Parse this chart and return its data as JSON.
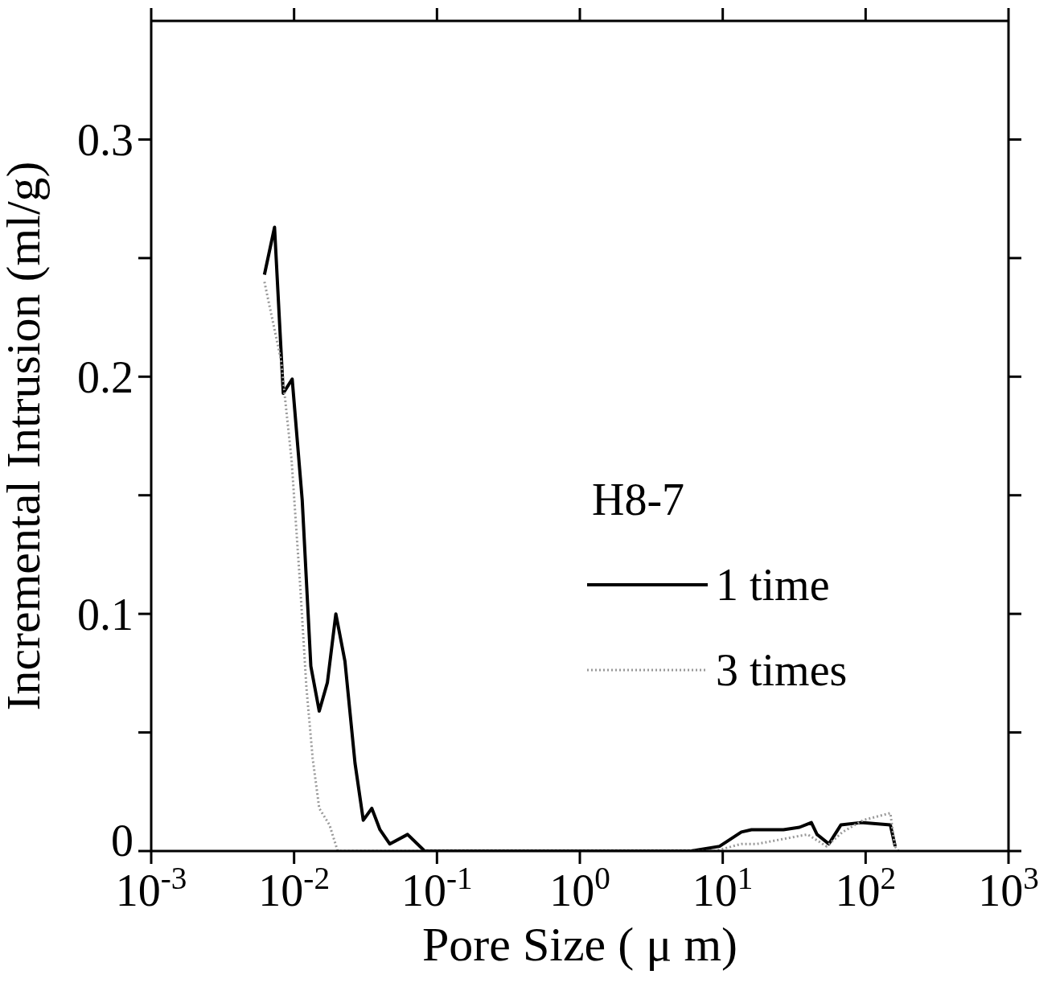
{
  "chart_data": {
    "type": "line",
    "xlabel": "Pore Size ( μ m)",
    "ylabel": "Incremental Intrusion (ml/g)",
    "legend_title": "H8-7",
    "legend": "right",
    "log": "x",
    "xlim": [
      0.001,
      1000
    ],
    "xticks": [
      {
        "value": 0.001,
        "label": "10$^{-3}$"
      },
      {
        "value": 0.01,
        "label": "10$^{-2}$"
      },
      {
        "value": 0.1,
        "label": "10$^{-1}$"
      },
      {
        "value": 1,
        "label": "10$^{0}$"
      },
      {
        "value": 10,
        "label": "10$^{1}$"
      },
      {
        "value": 100,
        "label": "10$^{2}$"
      },
      {
        "value": 1000,
        "label": "10$^{3}$"
      }
    ],
    "ylim": [
      0,
      0.35
    ],
    "yticks": [
      0,
      {
        "value": 0.05,
        "label": null
      },
      0.1,
      {
        "value": 0.15,
        "label": null
      },
      0.2,
      {
        "value": 0.25,
        "label": null
      },
      0.3
    ],
    "marker": "none",
    "series": [
      {
        "name": "1 time",
        "color": "#000000",
        "line_style": "solid",
        "x": [
          0.0062,
          0.0073,
          0.0084,
          0.0097,
          0.0114,
          0.0131,
          0.015,
          0.0171,
          0.0196,
          0.0227,
          0.0267,
          0.0305,
          0.035,
          0.0399,
          0.0467,
          0.0623,
          0.082,
          0.1,
          1,
          6,
          9.5,
          13.5,
          15.9,
          26.6,
          34.4,
          41.7,
          45.7,
          55.3,
          67.1,
          92.7,
          149,
          161
        ],
        "values": [
          0.243,
          0.263,
          0.193,
          0.199,
          0.148,
          0.078,
          0.059,
          0.071,
          0.1,
          0.08,
          0.037,
          0.013,
          0.018,
          0.009,
          0.003,
          0.007,
          0,
          0,
          0,
          0,
          0.002,
          0.008,
          0.009,
          0.009,
          0.01,
          0.012,
          0.007,
          0.003,
          0.011,
          0.012,
          0.011,
          0.002
        ]
      },
      {
        "name": "3 times",
        "color": "#999999",
        "line_style": "dotted",
        "x": [
          0.0062,
          0.0081,
          0.0096,
          0.011,
          0.0122,
          0.0135,
          0.015,
          0.0177,
          0.0202,
          0.1,
          1,
          8.8,
          13.5,
          17.4,
          39.2,
          53.3,
          68.9,
          96,
          149,
          160,
          170
        ],
        "values": [
          0.24,
          0.207,
          0.165,
          0.113,
          0.069,
          0.039,
          0.018,
          0.011,
          0,
          0,
          0,
          0,
          0.003,
          0.003,
          0.007,
          0.002,
          0.008,
          0.013,
          0.016,
          0.002,
          0
        ]
      }
    ]
  }
}
